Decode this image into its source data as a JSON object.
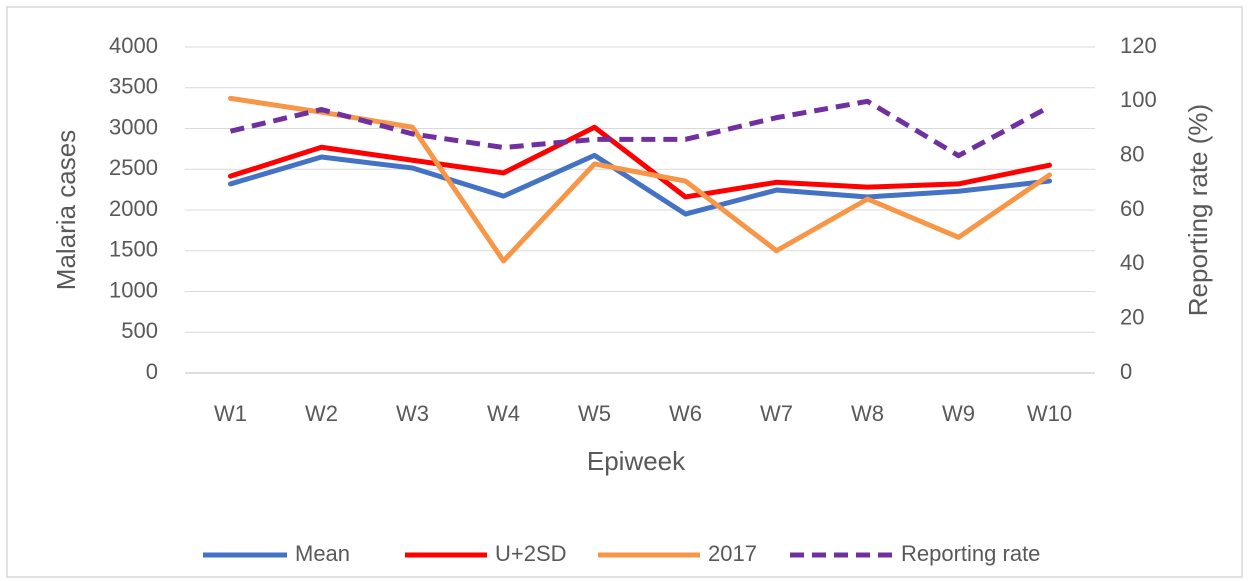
{
  "chart_data": {
    "type": "line",
    "x_label": "Epiweek",
    "y_label": "Malaria cases",
    "y2_label": "Reporting rate (%)",
    "categories": [
      "W1",
      "W2",
      "W3",
      "W4",
      "W5",
      "W6",
      "W7",
      "W8",
      "W9",
      "W10"
    ],
    "series": [
      {
        "name": "Mean",
        "color": "#4472c4",
        "values": [
          2320,
          2650,
          2515,
          2170,
          2670,
          1950,
          2245,
          2160,
          2230,
          2355
        ]
      },
      {
        "name": "U+2SD",
        "color": "#ff0000",
        "values": [
          2415,
          2770,
          2610,
          2455,
          3015,
          2160,
          2340,
          2280,
          2320,
          2550
        ]
      },
      {
        "name": "2017",
        "color": "#f79646",
        "values": [
          3370,
          3200,
          3015,
          1375,
          2565,
          2355,
          1500,
          2135,
          1665,
          2430
        ]
      },
      {
        "name": "Reporting rate",
        "color": "#7030a0",
        "dashed": true,
        "axis": "y2",
        "values": [
          89,
          97,
          88,
          83,
          86,
          86,
          94,
          100,
          80,
          98
        ]
      }
    ],
    "ylim": [
      0,
      4000
    ],
    "yticks": [
      0,
      500,
      1000,
      1500,
      2000,
      2500,
      3000,
      3500,
      4000
    ],
    "y2lim": [
      0,
      120
    ],
    "y2ticks": [
      0,
      20,
      40,
      60,
      80,
      100,
      120
    ],
    "grid": true,
    "legend": "bottom"
  }
}
